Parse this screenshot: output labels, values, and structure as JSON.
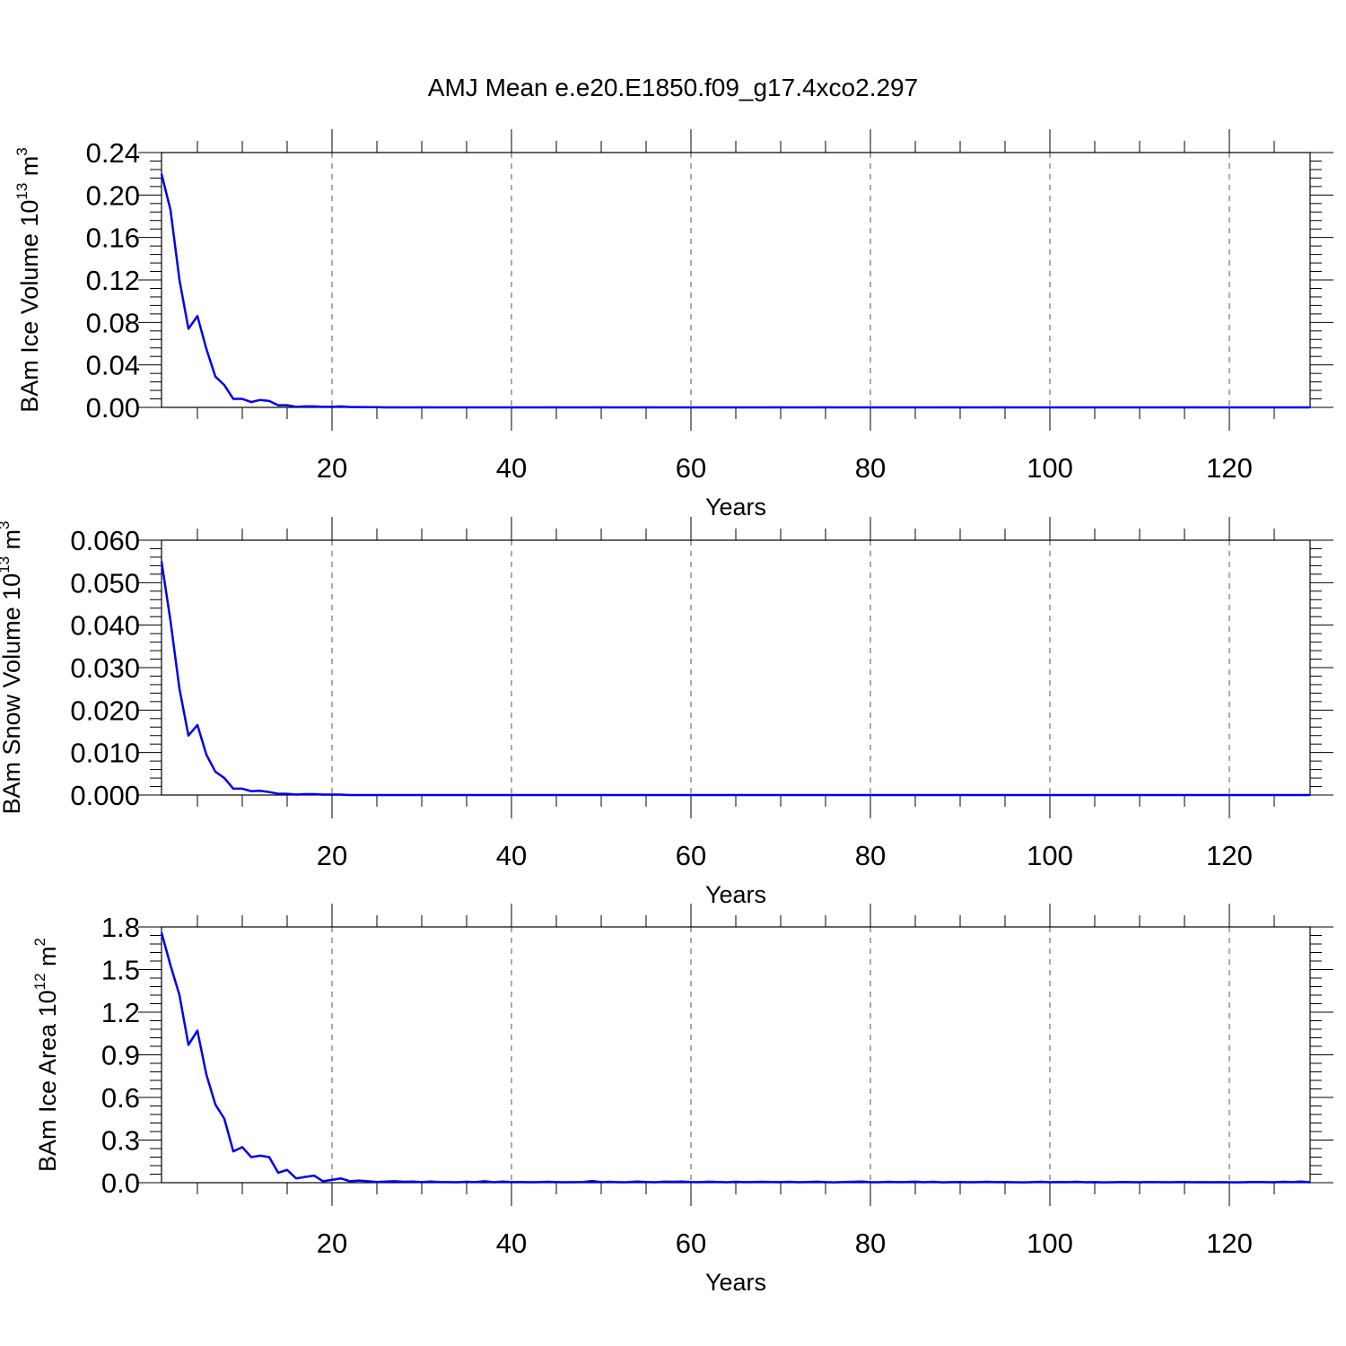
{
  "figure": {
    "title": "AMJ Mean e.e20.E1850.f09_g17.4xco2.297"
  },
  "colors": {
    "series": "#0000ee",
    "axis": "#000000",
    "grid": "#555555"
  },
  "chart_data": [
    {
      "type": "line",
      "ylabel_main": "BAm Ice Volume 10",
      "ylabel_exp": "13",
      "ylabel_unit": " m",
      "ylabel_unit_exp": "3",
      "xlabel": "Years",
      "xlim": [
        1,
        129
      ],
      "ylim": [
        0,
        0.24
      ],
      "xticks": [
        20,
        40,
        60,
        80,
        100,
        120
      ],
      "xtick_labels": [
        "20",
        "40",
        "60",
        "80",
        "100",
        "120"
      ],
      "yticks": [
        0,
        0.04,
        0.08,
        0.12,
        0.16,
        0.2,
        0.24
      ],
      "ytick_labels": [
        "0.00",
        "0.04",
        "0.08",
        "0.12",
        "0.16",
        "0.20",
        "0.24"
      ],
      "grid": "vertical dashed at major x ticks",
      "series": [
        {
          "x_start": 1,
          "values": [
            0.22,
            0.186,
            0.12,
            0.074,
            0.086,
            0.055,
            0.029,
            0.021,
            0.008,
            0.008,
            0.005,
            0.007,
            0.006,
            0.002,
            0.002,
            0.0005,
            0.001,
            0.001,
            0.0005,
            0.0005,
            0.001,
            0.0003,
            0.0003,
            0.0002,
            0.0002
          ]
        }
      ]
    },
    {
      "type": "line",
      "ylabel_main": "BAm Snow Volume 10",
      "ylabel_exp": "13",
      "ylabel_unit": " m",
      "ylabel_unit_exp": "3",
      "xlabel": "Years",
      "xlim": [
        1,
        129
      ],
      "ylim": [
        0,
        0.06
      ],
      "xticks": [
        20,
        40,
        60,
        80,
        100,
        120
      ],
      "xtick_labels": [
        "20",
        "40",
        "60",
        "80",
        "100",
        "120"
      ],
      "yticks": [
        0,
        0.01,
        0.02,
        0.03,
        0.04,
        0.05,
        0.06
      ],
      "ytick_labels": [
        "0.000",
        "0.010",
        "0.020",
        "0.030",
        "0.040",
        "0.050",
        "0.060"
      ],
      "grid": "vertical dashed at major x ticks",
      "series": [
        {
          "x_start": 1,
          "values": [
            0.055,
            0.041,
            0.025,
            0.014,
            0.0165,
            0.0095,
            0.0055,
            0.004,
            0.0015,
            0.0015,
            0.0009,
            0.001,
            0.0007,
            0.0003,
            0.0003,
            0.0001,
            0.0002,
            0.0002,
            0.0001,
            0.0001,
            0.0001
          ]
        }
      ]
    },
    {
      "type": "line",
      "ylabel_main": "BAm Ice Area 10",
      "ylabel_exp": "12",
      "ylabel_unit": " m",
      "ylabel_unit_exp": "2",
      "xlabel": "Years",
      "xlim": [
        1,
        129
      ],
      "ylim": [
        0,
        1.8
      ],
      "xticks": [
        20,
        40,
        60,
        80,
        100,
        120
      ],
      "xtick_labels": [
        "20",
        "40",
        "60",
        "80",
        "100",
        "120"
      ],
      "yticks": [
        0,
        0.3,
        0.6,
        0.9,
        1.2,
        1.5,
        1.8
      ],
      "ytick_labels": [
        "0.0",
        "0.3",
        "0.6",
        "0.9",
        "1.2",
        "1.5",
        "1.8"
      ],
      "grid": "vertical dashed at major x ticks",
      "series": [
        {
          "x_start": 1,
          "values": [
            1.76,
            1.53,
            1.32,
            0.97,
            1.07,
            0.76,
            0.55,
            0.45,
            0.22,
            0.25,
            0.18,
            0.19,
            0.18,
            0.07,
            0.09,
            0.03,
            0.04,
            0.05,
            0.01,
            0.02,
            0.03,
            0.01,
            0.015,
            0.01,
            0.005,
            0.008,
            0.01,
            0.006,
            0.008,
            0.004,
            0.008,
            0.005,
            0.004,
            0.003,
            0.006,
            0.004,
            0.01,
            0.003,
            0.008,
            0.004,
            0.005,
            0.003,
            0.004,
            0.006,
            0.004,
            0.003,
            0.004,
            0.005,
            0.012,
            0.004,
            0.006,
            0.003,
            0.004,
            0.008,
            0.005,
            0.003,
            0.007,
            0.006,
            0.008,
            0.005,
            0.004,
            0.007,
            0.005,
            0.003,
            0.006,
            0.004,
            0.005,
            0.006,
            0.005,
            0.004,
            0.006,
            0.003,
            0.005,
            0.007,
            0.004,
            0.002,
            0.005,
            0.006,
            0.008,
            0.004,
            0.003,
            0.006,
            0.004,
            0.005,
            0.007,
            0.003,
            0.006,
            0.002,
            0.004,
            0.005,
            0.003,
            0.004,
            0.006,
            0.004,
            0.005,
            0.003,
            0.002,
            0.004,
            0.006,
            0.003,
            0.005,
            0.004,
            0.006,
            0.003,
            0.004,
            0.002,
            0.003,
            0.005,
            0.004,
            0.003,
            0.005,
            0.004,
            0.003,
            0.004,
            0.005,
            0.003,
            0.004,
            0.003,
            0.004,
            0.003,
            0.002,
            0.004,
            0.005,
            0.004,
            0.003,
            0.006,
            0.004,
            0.008,
            0.003
          ]
        }
      ]
    }
  ]
}
